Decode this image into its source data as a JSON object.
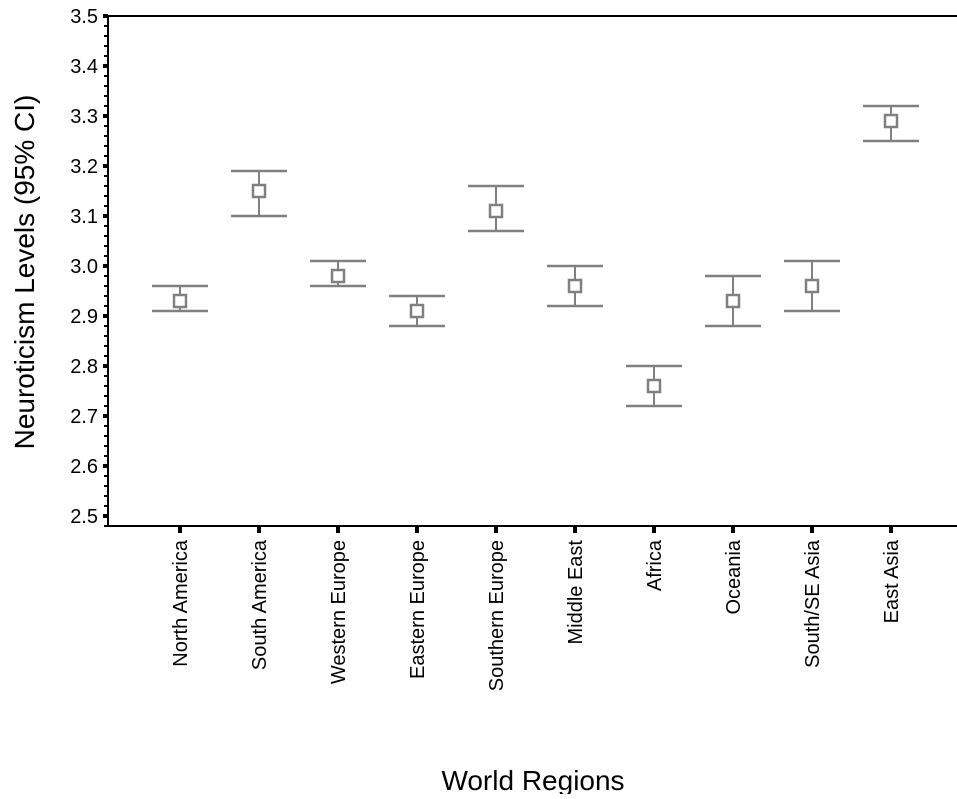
{
  "chart_data": {
    "type": "scatter",
    "subtype": "error-bar",
    "title": "",
    "xlabel": "World Regions",
    "ylabel": "Neuroticism Levels (95% CI)",
    "ylim": [
      2.48,
      3.5
    ],
    "yticks": [
      "2.5",
      "2.6",
      "2.7",
      "2.8",
      "2.9",
      "3.0",
      "3.1",
      "3.2",
      "3.3",
      "3.4",
      "3.5"
    ],
    "categories": [
      "North America",
      "South America",
      "Western Europe",
      "Eastern Europe",
      "Southern Europe",
      "Middle East",
      "Africa",
      "Oceania",
      "South/SE Asia",
      "East Asia"
    ],
    "series": [
      {
        "means": [
          2.93,
          3.15,
          2.98,
          2.91,
          3.11,
          2.96,
          2.76,
          2.93,
          2.96,
          3.29
        ],
        "lower": [
          2.91,
          3.1,
          2.96,
          2.88,
          3.07,
          2.92,
          2.72,
          2.88,
          2.91,
          3.25
        ],
        "upper": [
          2.96,
          3.19,
          3.01,
          2.94,
          3.16,
          3.0,
          2.8,
          2.98,
          3.01,
          3.32
        ]
      }
    ],
    "marker": "open-square",
    "color": "#808080",
    "grid": false,
    "legend": "none"
  }
}
